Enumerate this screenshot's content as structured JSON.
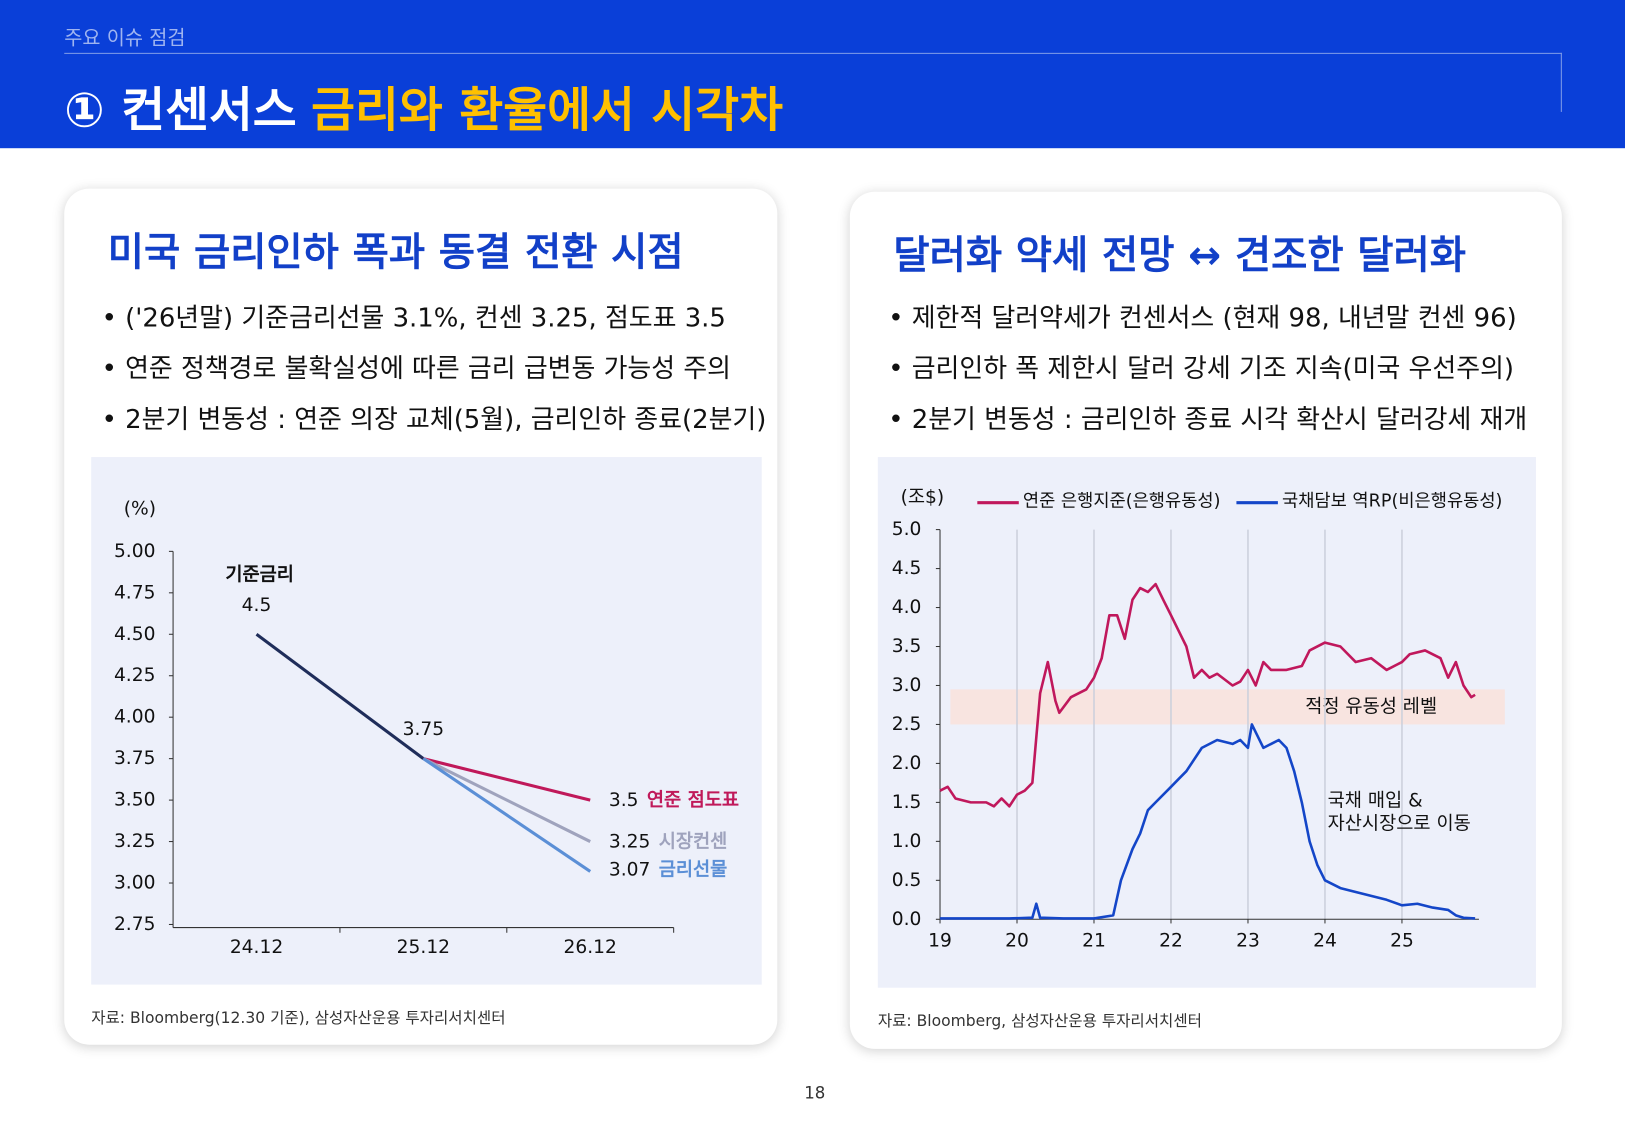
{
  "header": {
    "section": "주요 이슈 점검",
    "title_main": "① 컨센서스",
    "title_accent": "금리와 환율에서 시각차"
  },
  "panels": [
    {
      "title": "미국 금리인하 폭과 동결 전환 시점",
      "bullets": [
        "('26년말) 기준금리선물 3.1%, 컨센 3.25, 점도표 3.5",
        "연준 정책경로 불확실성에 따른 금리 급변동 가능성 주의",
        "2분기 변동성 : 연준 의장 교체(5월), 금리인하 종료(2분기)"
      ],
      "source": "자료: Bloomberg(12.30 기준), 삼성자산운용 투자리서치센터"
    },
    {
      "title": "달러화 약세 전망 ↔ 견조한 달러화",
      "bullets": [
        "제한적 달러약세가 컨센서스 (현재 98, 내년말 컨센 96)",
        "금리인하 폭 제한시 달러 강세 기조 지속(미국 우선주의)",
        "2분기 변동성 : 금리인하 종료 시각 확산시 달러강세 재개"
      ],
      "source": "자료: Bloomberg, 삼성자산운용 투자리서치센터"
    }
  ],
  "chart_data": [
    {
      "type": "line",
      "y_unit": "(%)",
      "categories": [
        "24.12",
        "25.12",
        "26.12"
      ],
      "ylim": [
        2.75,
        5
      ],
      "yticks": [
        {
          "value": 2.75,
          "label": "2.75"
        },
        {
          "value": 3,
          "label": "3.00"
        },
        {
          "value": 3.25,
          "label": "3.25"
        },
        {
          "value": 3.5,
          "label": "3.50"
        },
        {
          "value": 3.75,
          "label": "3.75"
        },
        {
          "value": 4,
          "label": "4.00"
        },
        {
          "value": 4.25,
          "label": "4.25"
        },
        {
          "value": 4.5,
          "label": "4.50"
        },
        {
          "value": 4.75,
          "label": "4.75"
        },
        {
          "value": 5,
          "label": "5.00"
        }
      ],
      "series": [
        {
          "name": "기준금리",
          "color": "#1f2d5a",
          "values": [
            4.5,
            3.75,
            null
          ]
        },
        {
          "name": "연준 점도표",
          "color": "#c0195a",
          "values": [
            null,
            3.75,
            3.5
          ]
        },
        {
          "name": "시장컨센",
          "color": "#9fa3bd",
          "values": [
            null,
            3.75,
            3.25
          ]
        },
        {
          "name": "금리선물",
          "color": "#5b8fd6",
          "values": [
            null,
            3.75,
            3.07
          ]
        }
      ]
    },
    {
      "type": "line",
      "y_unit": "(조$)",
      "xlim": [
        19,
        26
      ],
      "xticks": [
        19,
        20,
        21,
        22,
        23,
        24,
        25
      ],
      "ylim": [
        0,
        5
      ],
      "yticks": [
        {
          "value": 0,
          "label": "0.0"
        },
        {
          "value": 0.5,
          "label": "0.5"
        },
        {
          "value": 1,
          "label": "1.0"
        },
        {
          "value": 1.5,
          "label": "1.5"
        },
        {
          "value": 2,
          "label": "2.0"
        },
        {
          "value": 2.5,
          "label": "2.5"
        },
        {
          "value": 3,
          "label": "3.0"
        },
        {
          "value": 3.5,
          "label": "3.5"
        },
        {
          "value": 4,
          "label": "4.0"
        },
        {
          "value": 4.5,
          "label": "4.5"
        },
        {
          "value": 5,
          "label": "5.0"
        }
      ],
      "grid": true,
      "band": {
        "from": 2.5,
        "to": 2.95,
        "label": "적정 유동성 레벨",
        "color": "#f8e4e0"
      },
      "annotation": [
        "국채 매입 &",
        "자산시장으로 이동"
      ],
      "series": [
        {
          "name": "연준 은행지준(은행유동성)",
          "color": "#c0185c",
          "x": [
            19.0,
            19.1,
            19.2,
            19.4,
            19.6,
            19.7,
            19.8,
            19.9,
            20.0,
            20.1,
            20.2,
            20.3,
            20.4,
            20.5,
            20.55,
            20.7,
            20.9,
            21.0,
            21.1,
            21.2,
            21.3,
            21.4,
            21.5,
            21.6,
            21.7,
            21.8,
            21.9,
            22.0,
            22.1,
            22.2,
            22.3,
            22.4,
            22.5,
            22.6,
            22.8,
            22.9,
            23.0,
            23.1,
            23.2,
            23.3,
            23.5,
            23.7,
            23.8,
            24.0,
            24.2,
            24.4,
            24.6,
            24.8,
            25.0,
            25.1,
            25.3,
            25.5,
            25.6,
            25.7,
            25.8,
            25.9,
            25.95
          ],
          "values": [
            1.65,
            1.7,
            1.55,
            1.5,
            1.5,
            1.45,
            1.55,
            1.45,
            1.6,
            1.65,
            1.75,
            2.9,
            3.3,
            2.8,
            2.65,
            2.85,
            2.95,
            3.1,
            3.35,
            3.9,
            3.9,
            3.6,
            4.1,
            4.25,
            4.2,
            4.3,
            4.1,
            3.9,
            3.7,
            3.5,
            3.1,
            3.2,
            3.1,
            3.15,
            3.0,
            3.05,
            3.2,
            3.0,
            3.3,
            3.2,
            3.2,
            3.25,
            3.45,
            3.55,
            3.5,
            3.3,
            3.35,
            3.2,
            3.3,
            3.4,
            3.45,
            3.35,
            3.1,
            3.3,
            3.0,
            2.85,
            2.88
          ]
        },
        {
          "name": "국채담보 역RP(비은행유동성)",
          "color": "#1446c8",
          "x": [
            19.0,
            19.5,
            19.9,
            20.2,
            20.25,
            20.3,
            20.6,
            21.0,
            21.25,
            21.35,
            21.5,
            21.6,
            21.7,
            21.8,
            22.0,
            22.1,
            22.2,
            22.4,
            22.6,
            22.8,
            22.9,
            23.0,
            23.05,
            23.2,
            23.4,
            23.5,
            23.6,
            23.7,
            23.8,
            23.9,
            24.0,
            24.2,
            24.4,
            24.6,
            24.8,
            25.0,
            25.2,
            25.4,
            25.6,
            25.7,
            25.8,
            25.95
          ],
          "values": [
            0.01,
            0.01,
            0.01,
            0.02,
            0.2,
            0.02,
            0.01,
            0.01,
            0.05,
            0.5,
            0.9,
            1.1,
            1.4,
            1.5,
            1.7,
            1.8,
            1.9,
            2.2,
            2.3,
            2.25,
            2.3,
            2.2,
            2.5,
            2.2,
            2.3,
            2.2,
            1.9,
            1.5,
            1.0,
            0.7,
            0.5,
            0.4,
            0.35,
            0.3,
            0.25,
            0.18,
            0.2,
            0.15,
            0.12,
            0.05,
            0.02,
            0.01
          ]
        }
      ]
    }
  ],
  "page_number": "18"
}
